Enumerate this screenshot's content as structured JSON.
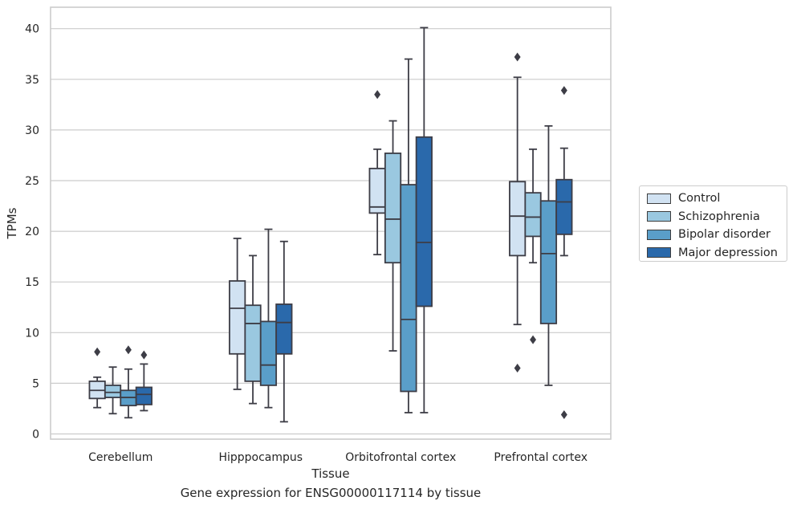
{
  "caption": "Gene expression for ENSG00000117114 by tissue",
  "chart_data": {
    "type": "box",
    "xlabel": "Tissue",
    "ylabel": "TPMs",
    "ylim": [
      -0.5,
      42
    ],
    "yticks": [
      0,
      5,
      10,
      15,
      20,
      25,
      30,
      35,
      40
    ],
    "grid": true,
    "legend_position": "right",
    "categories": [
      "Cerebellum",
      "Hipppocampus",
      "Orbitofrontal cortex",
      "Prefrontal cortex"
    ],
    "series": [
      {
        "name": "Control",
        "color": "#d1e2f2",
        "boxes": [
          {
            "whisker_low": 2.6,
            "q1": 3.5,
            "median": 4.3,
            "q3": 5.2,
            "whisker_high": 5.6,
            "outliers": [
              8.1
            ]
          },
          {
            "whisker_low": 4.4,
            "q1": 7.9,
            "median": 12.4,
            "q3": 15.1,
            "whisker_high": 19.3,
            "outliers": []
          },
          {
            "whisker_low": 17.7,
            "q1": 21.8,
            "median": 22.4,
            "q3": 26.2,
            "whisker_high": 28.1,
            "outliers": [
              33.5
            ]
          },
          {
            "whisker_low": 10.8,
            "q1": 17.6,
            "median": 21.5,
            "q3": 24.9,
            "whisker_high": 35.2,
            "outliers": [
              37.2,
              6.5
            ]
          }
        ]
      },
      {
        "name": "Schizophrenia",
        "color": "#9ac8e0",
        "boxes": [
          {
            "whisker_low": 2.0,
            "q1": 3.6,
            "median": 4.1,
            "q3": 4.8,
            "whisker_high": 6.6,
            "outliers": []
          },
          {
            "whisker_low": 3.0,
            "q1": 5.2,
            "median": 10.9,
            "q3": 12.7,
            "whisker_high": 17.6,
            "outliers": []
          },
          {
            "whisker_low": 8.2,
            "q1": 16.9,
            "median": 21.2,
            "q3": 27.7,
            "whisker_high": 30.9,
            "outliers": []
          },
          {
            "whisker_low": 16.9,
            "q1": 19.5,
            "median": 21.4,
            "q3": 23.8,
            "whisker_high": 28.1,
            "outliers": [
              9.3
            ]
          }
        ]
      },
      {
        "name": "Bipolar disorder",
        "color": "#5a9ec9",
        "boxes": [
          {
            "whisker_low": 1.6,
            "q1": 2.8,
            "median": 3.6,
            "q3": 4.3,
            "whisker_high": 6.4,
            "outliers": [
              8.3
            ]
          },
          {
            "whisker_low": 2.6,
            "q1": 4.8,
            "median": 6.8,
            "q3": 11.1,
            "whisker_high": 20.2,
            "outliers": []
          },
          {
            "whisker_low": 2.1,
            "q1": 4.2,
            "median": 11.3,
            "q3": 24.6,
            "whisker_high": 37.0,
            "outliers": []
          },
          {
            "whisker_low": 4.8,
            "q1": 10.9,
            "median": 17.8,
            "q3": 23.0,
            "whisker_high": 30.4,
            "outliers": []
          }
        ]
      },
      {
        "name": "Major depression",
        "color": "#2a69ab",
        "boxes": [
          {
            "whisker_low": 2.3,
            "q1": 2.9,
            "median": 3.9,
            "q3": 4.6,
            "whisker_high": 6.9,
            "outliers": [
              7.8
            ]
          },
          {
            "whisker_low": 1.2,
            "q1": 7.9,
            "median": 11.0,
            "q3": 12.8,
            "whisker_high": 19.0,
            "outliers": []
          },
          {
            "whisker_low": 2.1,
            "q1": 12.6,
            "median": 18.9,
            "q3": 29.3,
            "whisker_high": 40.1,
            "outliers": []
          },
          {
            "whisker_low": 17.6,
            "q1": 19.7,
            "median": 22.9,
            "q3": 25.1,
            "whisker_high": 28.2,
            "outliers": [
              33.9,
              1.9
            ]
          }
        ]
      }
    ]
  }
}
